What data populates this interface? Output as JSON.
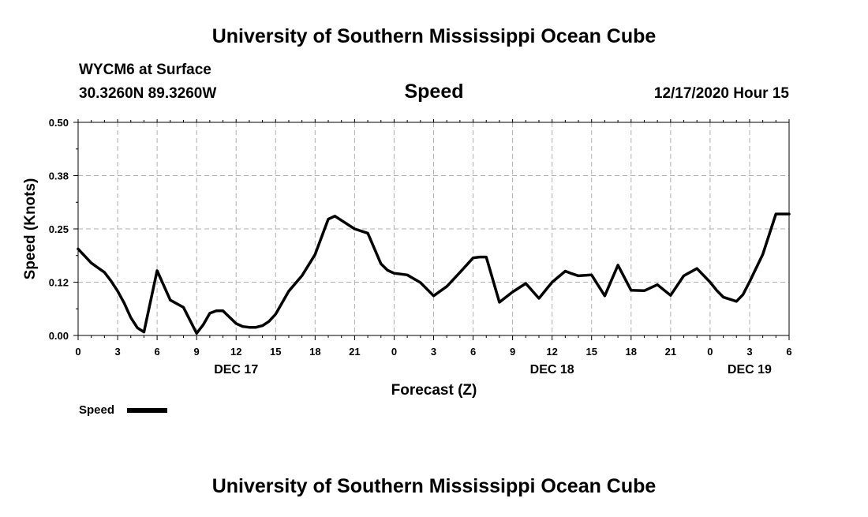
{
  "header": {
    "title": "University of Southern Mississippi Ocean Cube",
    "station": "WYCM6 at Surface",
    "coords": "30.3260N 89.3260W",
    "variable": "Speed",
    "datetime": "12/17/2020 Hour 15"
  },
  "footer": {
    "title": "University of Southern Mississippi Ocean Cube"
  },
  "colors": {
    "line": "#000000",
    "grid": "#b0b0b0",
    "axis": "#000000",
    "background": "#ffffff"
  },
  "chart_data": {
    "type": "line",
    "title": "Speed",
    "xlabel": "Forecast (Z)",
    "ylabel": "Speed (Knots)",
    "ylim": [
      0,
      0.5
    ],
    "xlim": [
      0,
      54
    ],
    "yticks": [
      0,
      0.125,
      0.25,
      0.375,
      0.5
    ],
    "ytick_labels": [
      "0.00",
      "0.12",
      "0.25",
      "0.38",
      "0.50"
    ],
    "xticks": [
      0,
      3,
      6,
      9,
      12,
      15,
      18,
      21,
      24,
      27,
      30,
      33,
      36,
      39,
      42,
      45,
      48,
      51,
      54
    ],
    "xtick_labels": [
      "0",
      "3",
      "6",
      "9",
      "12",
      "15",
      "18",
      "21",
      "0",
      "3",
      "6",
      "9",
      "12",
      "15",
      "18",
      "21",
      "0",
      "3",
      "6"
    ],
    "day_labels": [
      {
        "x": 12,
        "label": "DEC 17"
      },
      {
        "x": 36,
        "label": "DEC 18"
      },
      {
        "x": 51,
        "label": "DEC 19"
      }
    ],
    "grid": true,
    "legend": {
      "position": "bottom-left",
      "label": "Speed"
    },
    "series": [
      {
        "name": "Speed",
        "x": [
          0,
          1,
          2,
          2.5,
          3,
          3.5,
          4,
          4.5,
          5,
          6,
          7,
          8,
          9,
          9.5,
          10,
          10.5,
          11,
          12,
          12.5,
          13,
          13.5,
          14,
          14.5,
          15,
          16,
          17,
          18,
          19,
          19.5,
          20,
          21,
          22,
          23,
          23.5,
          24,
          25,
          26,
          27,
          28,
          29,
          30,
          30.5,
          31,
          32,
          33,
          34,
          35,
          36,
          37,
          37.5,
          38,
          39,
          40,
          41,
          42,
          43,
          44,
          45,
          46,
          47,
          48,
          48.5,
          49,
          50,
          50.5,
          51,
          52,
          53,
          54
        ],
        "y": [
          0.203,
          0.17,
          0.148,
          0.128,
          0.104,
          0.076,
          0.042,
          0.018,
          0.008,
          0.152,
          0.083,
          0.066,
          0.005,
          0.025,
          0.052,
          0.058,
          0.058,
          0.028,
          0.021,
          0.019,
          0.019,
          0.023,
          0.033,
          0.05,
          0.104,
          0.14,
          0.19,
          0.273,
          0.28,
          0.27,
          0.25,
          0.24,
          0.168,
          0.153,
          0.146,
          0.142,
          0.124,
          0.093,
          0.115,
          0.148,
          0.182,
          0.184,
          0.184,
          0.078,
          0.102,
          0.122,
          0.087,
          0.125,
          0.151,
          0.145,
          0.14,
          0.142,
          0.093,
          0.165,
          0.106,
          0.105,
          0.119,
          0.094,
          0.14,
          0.157,
          0.125,
          0.106,
          0.09,
          0.08,
          0.096,
          0.126,
          0.19,
          0.285,
          0.285
        ]
      }
    ]
  }
}
